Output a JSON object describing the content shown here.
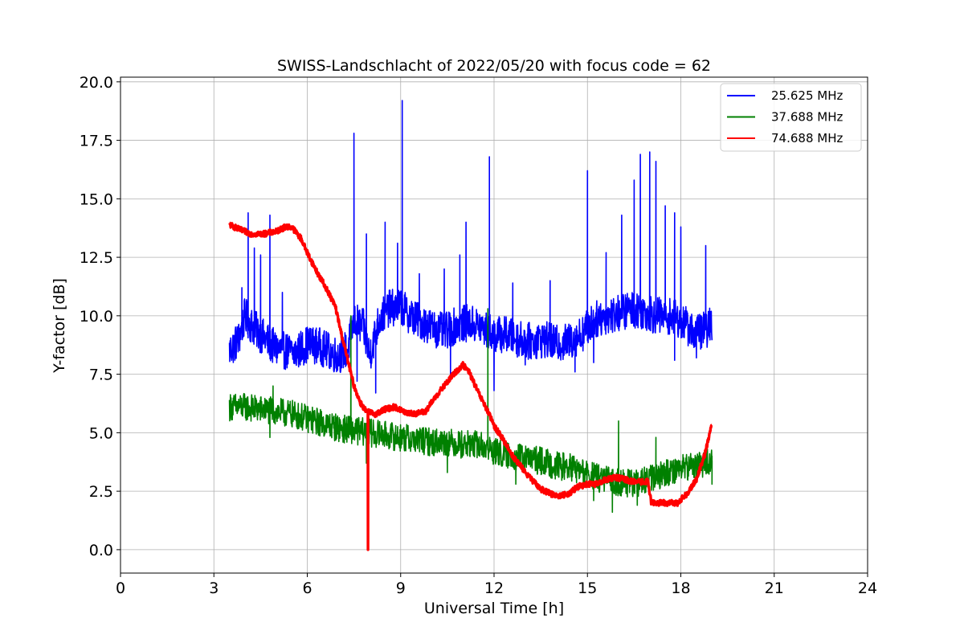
{
  "chart_data": {
    "type": "line",
    "title": "SWISS-Landschlacht of 2022/05/20 with focus code = 62",
    "xlabel": "Universal Time [h]",
    "ylabel": "Y-factor [dB]",
    "xlim": [
      0,
      24
    ],
    "ylim": [
      -1.0,
      20.2
    ],
    "xticks": [
      "0",
      "3",
      "6",
      "9",
      "12",
      "15",
      "18",
      "21",
      "24"
    ],
    "yticks": [
      "0.0",
      "2.5",
      "5.0",
      "7.5",
      "10.0",
      "12.5",
      "15.0",
      "17.5",
      "20.0"
    ],
    "grid": true,
    "legend_position": "top-right",
    "series": [
      {
        "name": "25.625 MHz",
        "color": "#0000ff",
        "x": [
          3.5,
          3.8,
          4.0,
          4.2,
          4.5,
          4.8,
          5.0,
          5.3,
          5.6,
          6.0,
          6.4,
          6.8,
          7.0,
          7.3,
          7.5,
          7.8,
          8.0,
          8.3,
          8.6,
          9.0,
          9.3,
          9.6,
          10.0,
          10.4,
          10.8,
          11.2,
          11.6,
          12.0,
          12.4,
          12.8,
          13.2,
          13.6,
          14.0,
          14.4,
          14.8,
          15.2,
          15.6,
          16.0,
          16.4,
          16.8,
          17.2,
          17.6,
          18.0,
          18.4,
          18.8,
          19.0
        ],
        "values": [
          8.5,
          9.0,
          10.0,
          9.6,
          9.2,
          8.8,
          8.6,
          8.5,
          8.4,
          8.8,
          8.7,
          8.4,
          8.3,
          8.6,
          9.8,
          9.5,
          8.3,
          9.8,
          10.3,
          10.4,
          10.0,
          9.8,
          9.5,
          9.3,
          9.6,
          9.7,
          9.5,
          9.2,
          9.2,
          9.0,
          8.9,
          9.0,
          8.8,
          8.9,
          9.2,
          9.8,
          10.0,
          10.1,
          10.3,
          10.2,
          10.0,
          10.0,
          9.8,
          9.3,
          9.4,
          9.6
        ],
        "peaks": [
          [
            3.9,
            11.2
          ],
          [
            4.1,
            14.4
          ],
          [
            4.3,
            12.9
          ],
          [
            4.5,
            12.6
          ],
          [
            4.8,
            14.3
          ],
          [
            5.2,
            11.0
          ],
          [
            7.5,
            17.8
          ],
          [
            7.9,
            13.5
          ],
          [
            8.5,
            14.0
          ],
          [
            8.9,
            13.1
          ],
          [
            9.05,
            19.2
          ],
          [
            9.6,
            11.8
          ],
          [
            10.4,
            12.0
          ],
          [
            10.9,
            12.6
          ],
          [
            11.1,
            14.0
          ],
          [
            11.85,
            16.8
          ],
          [
            12.6,
            11.4
          ],
          [
            13.8,
            11.5
          ],
          [
            15.0,
            16.2
          ],
          [
            15.6,
            12.7
          ],
          [
            16.1,
            14.3
          ],
          [
            16.5,
            15.8
          ],
          [
            16.7,
            16.9
          ],
          [
            17.0,
            17.0
          ],
          [
            17.2,
            16.6
          ],
          [
            17.5,
            14.7
          ],
          [
            17.8,
            14.4
          ],
          [
            18.0,
            13.8
          ],
          [
            18.8,
            13.0
          ]
        ],
        "dips": [
          [
            7.6,
            7.2
          ],
          [
            8.2,
            6.7
          ],
          [
            10.6,
            7.4
          ],
          [
            12.0,
            6.8
          ],
          [
            13.0,
            7.9
          ],
          [
            14.6,
            7.6
          ],
          [
            15.2,
            8.0
          ],
          [
            17.8,
            8.1
          ],
          [
            18.5,
            8.2
          ]
        ]
      },
      {
        "name": "37.688 MHz",
        "color": "#008000",
        "x": [
          3.5,
          4.0,
          4.5,
          5.0,
          5.5,
          6.0,
          6.5,
          7.0,
          7.5,
          8.0,
          8.5,
          9.0,
          9.5,
          10.0,
          10.5,
          11.0,
          11.5,
          12.0,
          12.5,
          13.0,
          13.5,
          14.0,
          14.5,
          15.0,
          15.5,
          16.0,
          16.5,
          17.0,
          17.5,
          18.0,
          18.5,
          19.0
        ],
        "values": [
          6.1,
          6.1,
          6.0,
          5.9,
          5.8,
          5.6,
          5.4,
          5.2,
          5.1,
          5.0,
          4.9,
          4.8,
          4.7,
          4.6,
          4.6,
          4.5,
          4.5,
          4.2,
          4.0,
          3.9,
          3.8,
          3.6,
          3.5,
          3.2,
          3.0,
          2.9,
          2.8,
          3.0,
          3.3,
          3.5,
          3.6,
          3.8
        ],
        "peaks": [
          [
            4.9,
            7.0
          ],
          [
            7.4,
            10.0
          ],
          [
            11.8,
            10.3
          ],
          [
            16.0,
            5.5
          ],
          [
            17.2,
            4.8
          ]
        ],
        "dips": [
          [
            4.8,
            4.8
          ],
          [
            7.9,
            3.7
          ],
          [
            10.5,
            3.3
          ],
          [
            12.7,
            2.8
          ],
          [
            15.2,
            2.1
          ],
          [
            15.8,
            1.6
          ],
          [
            16.6,
            1.9
          ],
          [
            19.0,
            2.8
          ]
        ]
      },
      {
        "name": "74.688 MHz",
        "color": "#ff0000",
        "x": [
          3.5,
          3.8,
          4.2,
          4.6,
          5.0,
          5.3,
          5.5,
          5.8,
          6.0,
          6.3,
          6.6,
          6.9,
          7.1,
          7.3,
          7.5,
          7.7,
          7.9,
          8.2,
          8.5,
          8.8,
          9.1,
          9.4,
          9.8,
          10.1,
          10.4,
          10.7,
          11.0,
          11.2,
          11.5,
          11.8,
          12.0,
          12.3,
          12.6,
          12.9,
          13.2,
          13.5,
          13.8,
          14.1,
          14.4,
          14.7,
          15.0,
          15.3,
          15.6,
          15.9,
          16.2,
          16.5,
          16.8,
          16.95,
          17.05,
          17.3,
          17.6,
          17.9,
          18.2,
          18.5,
          18.8,
          19.0
        ],
        "values": [
          13.9,
          13.7,
          13.5,
          13.5,
          13.6,
          13.8,
          13.8,
          13.3,
          12.7,
          11.9,
          11.2,
          10.4,
          9.2,
          8.1,
          7.0,
          6.3,
          5.9,
          5.8,
          6.0,
          6.1,
          5.9,
          5.8,
          5.9,
          6.5,
          7.0,
          7.5,
          7.9,
          7.6,
          6.7,
          5.9,
          5.3,
          4.7,
          4.0,
          3.5,
          3.0,
          2.6,
          2.4,
          2.3,
          2.4,
          2.7,
          2.8,
          2.8,
          3.0,
          3.1,
          3.0,
          2.9,
          2.9,
          2.9,
          2.0,
          2.0,
          2.0,
          2.0,
          2.4,
          3.0,
          4.2,
          5.4
        ],
        "dips": [
          [
            7.95,
            0.0
          ]
        ]
      }
    ]
  }
}
